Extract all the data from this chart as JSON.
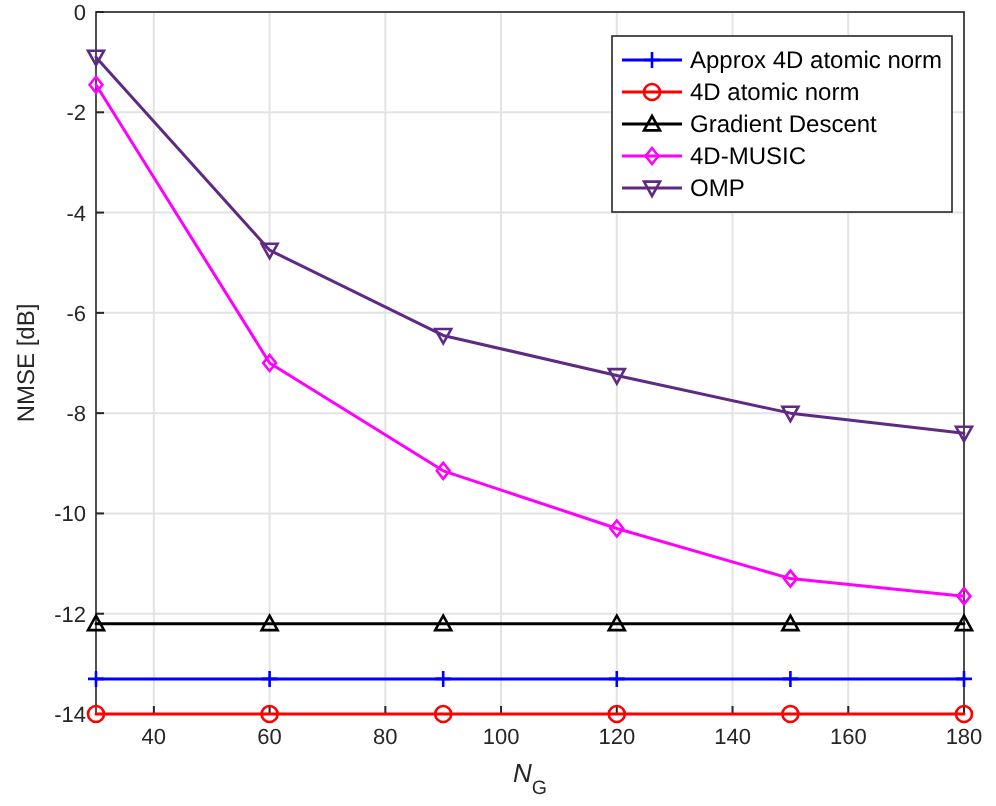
{
  "chart_data": {
    "type": "line",
    "xlabel": "N$_{G}$",
    "ylabel": "NMSE [dB]",
    "x": [
      30,
      60,
      90,
      120,
      150,
      180
    ],
    "xlim": [
      30,
      180
    ],
    "xticks": [
      40,
      60,
      80,
      100,
      120,
      140,
      160,
      180
    ],
    "ylim": [
      -14,
      0
    ],
    "yticks": [
      -14,
      -12,
      -10,
      -8,
      -6,
      -4,
      -2,
      0
    ],
    "grid": true,
    "legend": "top right",
    "line_style": "solid",
    "series": [
      {
        "name": "Approx 4D atomic norm",
        "color": "#0000ff",
        "marker": "cross",
        "values": [
          -13.3,
          -13.3,
          -13.3,
          -13.3,
          -13.3,
          -13.3
        ]
      },
      {
        "name": "4D atomic norm",
        "color": "#ff0000",
        "marker": "circle",
        "values": [
          -14,
          -14,
          -14,
          -14,
          -14,
          -14
        ]
      },
      {
        "name": "Gradient Descent",
        "color": "#000000",
        "marker": "triangle",
        "values": [
          -12.2,
          -12.2,
          -12.2,
          -12.2,
          -12.2,
          -12.2
        ]
      },
      {
        "name": "4D-MUSIC",
        "color": "#ff00ff",
        "marker": "diamond",
        "values": [
          -1.45,
          -7.0,
          -9.15,
          -10.3,
          -11.3,
          -11.65
        ]
      },
      {
        "name": "OMP",
        "color": "#5e2a84",
        "marker": "triangle-down",
        "values": [
          -0.9,
          -4.75,
          -6.45,
          -7.25,
          -8.0,
          -8.4
        ]
      }
    ]
  }
}
